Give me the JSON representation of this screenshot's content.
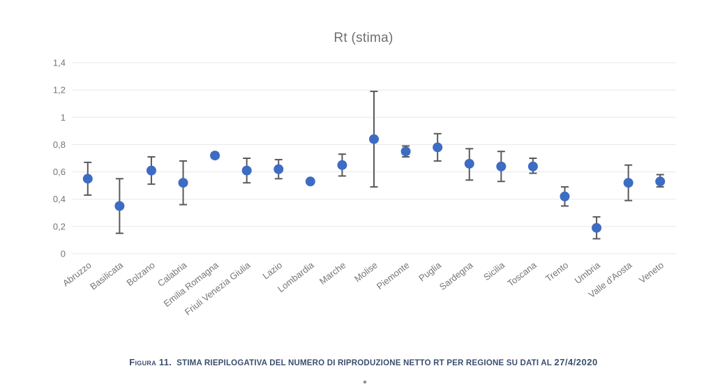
{
  "title": "Rt (stima)",
  "chart_data": {
    "type": "scatter",
    "title": "Rt (stima)",
    "xlabel": "",
    "ylabel": "",
    "ylim": [
      0,
      1.4
    ],
    "grid": true,
    "legend": "none",
    "yticks": [
      {
        "value": 0,
        "label": "0"
      },
      {
        "value": 0.2,
        "label": "0,2"
      },
      {
        "value": 0.4,
        "label": "0,4"
      },
      {
        "value": 0.6,
        "label": "0,6"
      },
      {
        "value": 0.8,
        "label": "0,8"
      },
      {
        "value": 1,
        "label": "1"
      },
      {
        "value": 1.2,
        "label": "1,2"
      },
      {
        "value": 1.4,
        "label": "1,4"
      }
    ],
    "categories": [
      "Abruzzo",
      "Basilicata",
      "Bolzano",
      "Calabria",
      "Emilia Romagna",
      "Friuli Venezia Giulia",
      "Lazio",
      "Lombardia",
      "Marche",
      "Molise",
      "Piemonte",
      "Puglia",
      "Sardegna",
      "Sicilia",
      "Toscana",
      "Trento",
      "Umbria",
      "Valle d'Aosta",
      "Veneto"
    ],
    "values": [
      0.55,
      0.35,
      0.61,
      0.52,
      0.72,
      0.61,
      0.62,
      0.53,
      0.65,
      0.84,
      0.75,
      0.78,
      0.66,
      0.64,
      0.64,
      0.42,
      0.19,
      0.52,
      0.53
    ],
    "error_low": [
      0.43,
      0.15,
      0.51,
      0.36,
      0.7,
      0.52,
      0.55,
      null,
      0.57,
      0.49,
      0.71,
      0.68,
      0.54,
      0.53,
      0.59,
      0.35,
      0.11,
      0.39,
      0.49
    ],
    "error_high": [
      0.67,
      0.55,
      0.71,
      0.68,
      0.74,
      0.7,
      0.69,
      null,
      0.73,
      1.19,
      0.79,
      0.88,
      0.77,
      0.75,
      0.7,
      0.49,
      0.27,
      0.65,
      0.58
    ],
    "colors": {
      "point": "#3d6cc4",
      "error_bar": "#58595b",
      "gridline": "#e7e7e7",
      "axis_text": "#757575",
      "title_text": "#6d6e71"
    }
  },
  "caption": {
    "label": "Figura 11.",
    "text": "Stima riepilogativa del numero di riproduzione netto Rt per regione su dati al",
    "date": "27/4/2020"
  }
}
